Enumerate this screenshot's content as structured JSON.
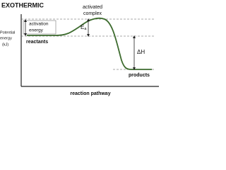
{
  "title": "EXOTHERMIC",
  "peak_label": [
    "activated",
    "complex"
  ],
  "y_axis_label": [
    "Potential",
    "energy",
    "(kJ)"
  ],
  "activation_label": [
    "activation",
    "energy"
  ],
  "ea": {
    "main": "E",
    "sub": "a"
  },
  "reactants": "reactants",
  "delta_h": "ΔH",
  "products": "products",
  "x_axis_label": "reaction pathway"
}
